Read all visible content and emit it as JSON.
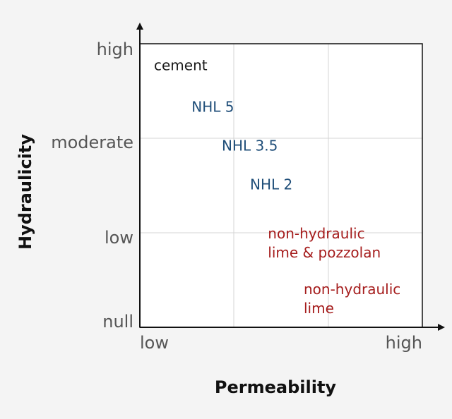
{
  "chart_data": {
    "type": "scatter",
    "xlabel": "Permeability",
    "ylabel": "Hydraulicity",
    "x_ticks": [
      "low",
      "high"
    ],
    "y_ticks": [
      "null",
      "low",
      "moderate",
      "high"
    ],
    "x_range": [
      0,
      3
    ],
    "y_range": [
      0,
      3
    ],
    "grid": true,
    "points": [
      {
        "label": "cement",
        "lines": [
          "cement"
        ],
        "x": 0.15,
        "y": 2.72,
        "color": "#1a1a1a"
      },
      {
        "label": "NHL 5",
        "lines": [
          "NHL 5"
        ],
        "x": 0.55,
        "y": 2.28,
        "color": "#1f4e79"
      },
      {
        "label": "NHL 3.5",
        "lines": [
          "NHL 3.5"
        ],
        "x": 0.87,
        "y": 1.87,
        "color": "#1f4e79"
      },
      {
        "label": "NHL 2",
        "lines": [
          "NHL 2"
        ],
        "x": 1.17,
        "y": 1.46,
        "color": "#1f4e79"
      },
      {
        "label": "non-hydraulic lime & pozzolan",
        "lines": [
          "non-hydraulic",
          "lime & pozzolan"
        ],
        "x": 1.36,
        "y": 0.94,
        "color": "#a51c1c"
      },
      {
        "label": "non-hydraulic lime",
        "lines": [
          "non-hydraulic",
          "lime"
        ],
        "x": 1.74,
        "y": 0.35,
        "color": "#a51c1c"
      }
    ]
  }
}
